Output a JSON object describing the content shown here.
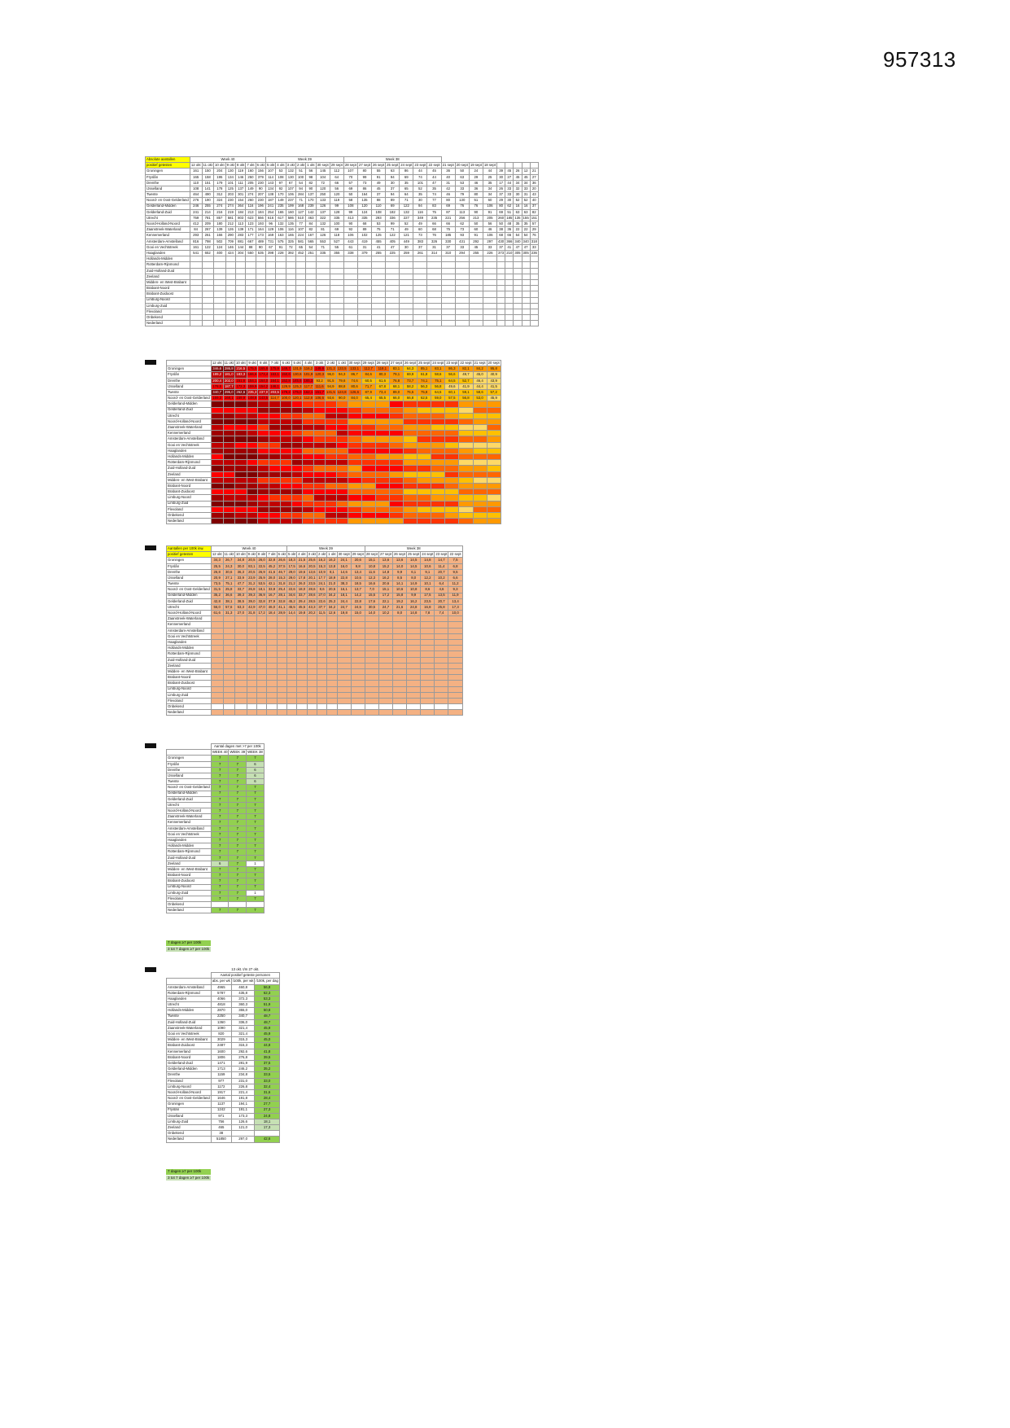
{
  "document_id": "957313",
  "colors": {
    "yellow_header": "#ffff00",
    "green": "#92d050",
    "light_green": "#c6e0b4",
    "salmon": "#f4b183",
    "heat_dark": "#7f0000",
    "heat_red": "#ff0000",
    "heat_orange": "#ff9900",
    "heat_yellow": "#ffd966"
  },
  "regions": [
    "Groningen",
    "Fryslân",
    "Drenthe",
    "IJsselland",
    "Twente",
    "Noord- en Oost-Gelderland",
    "Gelderland-Midden",
    "Gelderland-Zuid",
    "Utrecht",
    "Noord-Holland-Noord",
    "Zaanstreek-Waterland",
    "Kennemerland",
    "Amsterdam-Amstelland",
    "Gooi en Vechtstreek",
    "Haaglanden",
    "Hollands-Midden",
    "Rotterdam-Rijnmond",
    "Zuid-Holland-Zuid",
    "Zeeland",
    "Midden- en West-Brabant",
    "Brabant-Noord",
    "Brabant-Zuidoost",
    "Limburg-Noord",
    "Limburg-Zuid",
    "Flevoland",
    "Onbekend",
    "Nederland"
  ],
  "dates": [
    "12 okt",
    "11 okt",
    "10 okt",
    "9 okt",
    "8 okt",
    "7 okt",
    "6 okt",
    "5 okt",
    "4 okt",
    "3 okt",
    "2 okt",
    "1 okt",
    "30 sept",
    "29 sept",
    "28 sept",
    "27 sept"
  ],
  "extra_dates": [
    "26 sept",
    "25 sept",
    "24 sept",
    "23 sept",
    "22 sept",
    "21 sept",
    "20 sept",
    "19 sept",
    "18 sept"
  ],
  "weeks": {
    "w40": "Week 40",
    "w39": "Week 39",
    "w38": "Week 38"
  },
  "table1": {
    "title": "Absolute aantallen",
    "subtitle": "positief getesten",
    "corner": "# inwoners",
    "rows": [
      [
        "161",
        "150",
        "204",
        "130",
        "119",
        "160",
        "156",
        "107",
        "53",
        "132",
        "51",
        "56",
        "145",
        "112",
        "107",
        "80",
        "55",
        "63",
        "86",
        "44",
        "45",
        "36",
        "50",
        "24",
        "44",
        "39",
        "45",
        "26",
        "12",
        "21"
      ],
      [
        "165",
        "158",
        "195",
        "134",
        "146",
        "250",
        "379",
        "114",
        "108",
        "130",
        "100",
        "98",
        "104",
        "64",
        "70",
        "99",
        "91",
        "94",
        "69",
        "74",
        "44",
        "40",
        "63",
        "29",
        "25",
        "30",
        "27",
        "45",
        "45",
        "27"
      ],
      [
        "110",
        "151",
        "179",
        "101",
        "111",
        "205",
        "230",
        "143",
        "97",
        "67",
        "54",
        "82",
        "72",
        "66",
        "57",
        "73",
        "49",
        "30",
        "35",
        "101",
        "47",
        "31",
        "53",
        "46",
        "35",
        "17",
        "44",
        "34",
        "34",
        "36"
      ],
      [
        "108",
        "141",
        "178",
        "125",
        "137",
        "149",
        "90",
        "134",
        "92",
        "107",
        "94",
        "90",
        "120",
        "56",
        "69",
        "86",
        "45",
        "37",
        "65",
        "52",
        "35",
        "42",
        "33",
        "36",
        "34",
        "26",
        "33",
        "32",
        "33",
        "20"
      ],
      [
        "464",
        "490",
        "312",
        "203",
        "301",
        "274",
        "207",
        "138",
        "170",
        "106",
        "284",
        "137",
        "250",
        "120",
        "50",
        "164",
        "37",
        "94",
        "64",
        "35",
        "74",
        "46",
        "79",
        "80",
        "34",
        "37",
        "33",
        "30",
        "31",
        "43"
      ],
      [
        "276",
        "190",
        "324",
        "230",
        "154",
        "260",
        "230",
        "187",
        "149",
        "237",
        "71",
        "170",
        "133",
        "119",
        "58",
        "135",
        "88",
        "89",
        "71",
        "30",
        "77",
        "80",
        "130",
        "51",
        "60",
        "29",
        "30",
        "52",
        "52",
        "40"
      ],
      [
        "246",
        "255",
        "274",
        "274",
        "364",
        "116",
        "196",
        "241",
        "235",
        "199",
        "168",
        "239",
        "126",
        "99",
        "108",
        "120",
        "110",
        "69",
        "122",
        "94",
        "83",
        "69",
        "76",
        "76",
        "106",
        "80",
        "62",
        "16",
        "16",
        "37"
      ],
      [
        "241",
        "214",
        "216",
        "219",
        "184",
        "213",
        "184",
        "254",
        "165",
        "160",
        "127",
        "142",
        "137",
        "128",
        "99",
        "124",
        "108",
        "182",
        "132",
        "116",
        "75",
        "87",
        "113",
        "90",
        "91",
        "69",
        "51",
        "63",
        "63",
        "82"
      ],
      [
        "759",
        "781",
        "857",
        "581",
        "803",
        "623",
        "556",
        "616",
        "617",
        "586",
        "510",
        "463",
        "322",
        "335",
        "413",
        "335",
        "293",
        "336",
        "227",
        "349",
        "235",
        "221",
        "256",
        "213",
        "205",
        "260",
        "185",
        "135",
        "155",
        "151"
      ],
      [
        "412",
        "209",
        "180",
        "212",
        "113",
        "123",
        "193",
        "96",
        "132",
        "135",
        "77",
        "84",
        "132",
        "100",
        "90",
        "68",
        "53",
        "99",
        "52",
        "49",
        "66",
        "66",
        "62",
        "50",
        "56",
        "50",
        "48",
        "35",
        "35",
        "57"
      ],
      [
        "84",
        "267",
        "139",
        "126",
        "139",
        "171",
        "164",
        "129",
        "106",
        "116",
        "107",
        "82",
        "81",
        "69",
        "92",
        "89",
        "75",
        "71",
        "49",
        "60",
        "68",
        "75",
        "73",
        "60",
        "46",
        "38",
        "36",
        "22",
        "22",
        "29"
      ],
      [
        "293",
        "261",
        "166",
        "290",
        "283",
        "177",
        "173",
        "169",
        "163",
        "165",
        "224",
        "167",
        "126",
        "118",
        "106",
        "102",
        "125",
        "122",
        "121",
        "73",
        "76",
        "185",
        "93",
        "91",
        "106",
        "68",
        "66",
        "54",
        "54",
        "76"
      ],
      [
        "816",
        "798",
        "502",
        "709",
        "881",
        "667",
        "489",
        "731",
        "575",
        "325",
        "581",
        "565",
        "553",
        "527",
        "443",
        "419",
        "455",
        "405",
        "449",
        "383",
        "326",
        "330",
        "431",
        "292",
        "297",
        "430",
        "366",
        "340",
        "340",
        "318"
      ],
      [
        "161",
        "122",
        "124",
        "146",
        "144",
        "88",
        "90",
        "67",
        "91",
        "72",
        "65",
        "54",
        "71",
        "55",
        "61",
        "31",
        "41",
        "47",
        "30",
        "37",
        "31",
        "37",
        "33",
        "45",
        "33",
        "37",
        "41",
        "47",
        "47",
        "33"
      ],
      [
        "541",
        "652",
        "400",
        "424",
        "304",
        "550",
        "535",
        "398",
        "228",
        "392",
        "452",
        "251",
        "335",
        "355",
        "338",
        "379",
        "255",
        "225",
        "259",
        "261",
        "314",
        "310",
        "294",
        "255",
        "226",
        "373",
        "210",
        "305",
        "305",
        "236"
      ]
    ]
  },
  "table2": {
    "header": "",
    "rows": [
      [
        "346,6",
        "286,8",
        "216,5",
        "175,5",
        "165,8",
        "175,9",
        "149,7",
        "131,9",
        "116,2",
        "149,8",
        "131,2",
        "133,5",
        "133,1",
        "112,7",
        "118,1",
        "83,1",
        "64,3",
        "85,1",
        "83,1",
        "86,3",
        "82,1",
        "84,2",
        "95,8"
      ],
      [
        "189,2",
        "181,0",
        "183,3",
        "166,6",
        "173,4",
        "163,1",
        "150,6",
        "130,6",
        "101,9",
        "120,3",
        "96,0",
        "94,3",
        "86,7",
        "84,6",
        "80,3",
        "79,1",
        "69,9",
        "61,8",
        "58,6",
        "56,6",
        "49,7",
        "45,0",
        "40,9"
      ],
      [
        "200,4",
        "202,0",
        "151,6",
        "154,1",
        "164,0",
        "164,1",
        "152,8",
        "145,6",
        "165,3",
        "93,2",
        "91,5",
        "79,6",
        "74,6",
        "60,5",
        "61,6",
        "76,8",
        "73,7",
        "74,1",
        "75,1",
        "64,5",
        "52,7",
        "46,4",
        "43,9"
      ],
      [
        "178,5",
        "187,7",
        "172,3",
        "159,9",
        "154,2",
        "146,1",
        "129,9",
        "125,3",
        "117,7",
        "111,6",
        "94,9",
        "88,8",
        "80,6",
        "71,7",
        "67,8",
        "68,1",
        "58,2",
        "56,3",
        "56,8",
        "49,6",
        "41,9",
        "44,4",
        "41,5"
      ],
      [
        "340,7",
        "295,0",
        "262,6",
        "235,3",
        "237,0",
        "203,5",
        "179,2",
        "175,0",
        "162,1",
        "151,7",
        "131,5",
        "124,8",
        "126,6",
        "87,9",
        "73,4",
        "89,0",
        "76,5",
        "75,8",
        "64,5",
        "60,1",
        "59,1",
        "58,6",
        "57,2"
      ],
      [
        "169,3",
        "168,1",
        "159,9",
        "148,8",
        "143,5",
        "114,7",
        "100,0",
        "120,1",
        "112,8",
        "106,6",
        "93,6",
        "90,0",
        "84,0",
        "65,4",
        "65,5",
        "66,0",
        "66,8",
        "62,5",
        "59,0",
        "57,5",
        "56,8",
        "53,0",
        "45,9"
      ]
    ]
  },
  "table3": {
    "title": "Aantallen per 100k inw.",
    "subtitle": "positief getesten",
    "rows": [
      [
        "34,3",
        "26,7",
        "34,8",
        "20,5",
        "26,0",
        "32,8",
        "26,6",
        "18,3",
        "21,5",
        "25,6",
        "16,2",
        "16,2",
        "24,1",
        "20,6",
        "15,1",
        "13,6",
        "13,6",
        "14,5",
        "14,8",
        "14,7",
        "7,5"
      ],
      [
        "25,5",
        "24,3",
        "30,0",
        "83,1",
        "22,5",
        "45,2",
        "37,5",
        "17,5",
        "16,6",
        "20,5",
        "15,3",
        "13,8",
        "16,0",
        "9,8",
        "10,8",
        "15,2",
        "14,0",
        "14,5",
        "10,6",
        "11,4",
        "6,8"
      ],
      [
        "26,8",
        "30,6",
        "36,3",
        "20,5",
        "26,9",
        "41,6",
        "46,7",
        "29,0",
        "19,6",
        "13,6",
        "10,9",
        "8,1",
        "14,6",
        "13,4",
        "11,6",
        "14,8",
        "9,9",
        "6,1",
        "9,1",
        "20,7",
        "9,5"
      ],
      [
        "20,9",
        "27,1",
        "33,9",
        "23,9",
        "25,9",
        "28,0",
        "15,3",
        "29,0",
        "17,8",
        "20,1",
        "17,7",
        "18,9",
        "22,8",
        "10,5",
        "12,3",
        "16,2",
        "8,5",
        "8,0",
        "12,2",
        "10,2",
        "6,6"
      ],
      [
        "73,5",
        "75,1",
        "47,7",
        "31,2",
        "53,5",
        "42,1",
        "31,8",
        "21,2",
        "26,0",
        "23,5",
        "24,1",
        "21,0",
        "38,3",
        "18,5",
        "16,6",
        "20,6",
        "14,1",
        "14,9",
        "10,1",
        "6,4",
        "11,2"
      ],
      [
        "31,5",
        "25,8",
        "33,7",
        "26,8",
        "18,1",
        "33,8",
        "25,4",
        "22,6",
        "18,0",
        "28,6",
        "8,6",
        "20,5",
        "16,1",
        "13,7",
        "7,0",
        "15,1",
        "10,6",
        "10,8",
        "8,6",
        "4,6",
        "9,3"
      ],
      [
        "35,2",
        "36,6",
        "39,3",
        "39,3",
        "36,9",
        "16,7",
        "28,1",
        "34,6",
        "33,7",
        "28,6",
        "27,0",
        "34,2",
        "18,1",
        "14,2",
        "15,5",
        "17,2",
        "15,8",
        "9,9",
        "17,5",
        "13,5",
        "11,9"
      ],
      [
        "42,8",
        "38,1",
        "38,5",
        "39,0",
        "32,8",
        "37,9",
        "32,8",
        "45,2",
        "29,4",
        "28,5",
        "22,6",
        "25,3",
        "24,4",
        "22,8",
        "17,6",
        "22,1",
        "19,2",
        "16,2",
        "23,5",
        "20,7",
        "13,4"
      ],
      [
        "56,0",
        "57,6",
        "63,3",
        "42,9",
        "47,0",
        "46,0",
        "41,1",
        "45,5",
        "45,5",
        "43,3",
        "37,7",
        "34,2",
        "24,7",
        "24,5",
        "30,5",
        "24,7",
        "21,6",
        "24,8",
        "16,8",
        "25,8",
        "17,3"
      ],
      [
        "61,6",
        "31,3",
        "27,0",
        "31,8",
        "17,2",
        "18,4",
        "28,9",
        "14,4",
        "19,8",
        "20,2",
        "11,5",
        "12,6",
        "19,8",
        "15,0",
        "14,0",
        "10,2",
        "8,0",
        "14,8",
        "7,8",
        "7,4",
        "10,0"
      ]
    ]
  },
  "table4": {
    "title": "Aantal dagen met >7 per 100k",
    "columns": [
      "WEEK 40",
      "WEEK 39",
      "WEEK 38"
    ],
    "rows": [
      [
        "7",
        "7",
        "7"
      ],
      [
        "7",
        "7",
        "6"
      ],
      [
        "7",
        "7",
        "6"
      ],
      [
        "7",
        "7",
        "6"
      ],
      [
        "7",
        "7",
        "6"
      ],
      [
        "7",
        "7",
        "7"
      ],
      [
        "7",
        "7",
        "7"
      ],
      [
        "7",
        "7",
        "7"
      ],
      [
        "7",
        "7",
        "7"
      ],
      [
        "7",
        "7",
        "7"
      ],
      [
        "7",
        "7",
        "7"
      ],
      [
        "7",
        "7",
        "7"
      ],
      [
        "7",
        "7",
        "7"
      ],
      [
        "7",
        "7",
        "7"
      ],
      [
        "7",
        "7",
        "7"
      ],
      [
        "7",
        "7",
        "7"
      ],
      [
        "7",
        "7",
        "7"
      ],
      [
        "7",
        "7",
        "7"
      ],
      [
        "6",
        "7",
        "1"
      ],
      [
        "7",
        "7",
        "7"
      ],
      [
        "7",
        "7",
        "7"
      ],
      [
        "7",
        "7",
        "7"
      ],
      [
        "7",
        "7",
        "7"
      ],
      [
        "7",
        "7",
        "1"
      ],
      [
        "7",
        "7",
        "7"
      ],
      [
        "",
        "",
        " "
      ],
      [
        "7",
        "7",
        "7"
      ]
    ],
    "legend": [
      "7 dagen ≥7 per 100k",
      "3 tot 7 dagen ≥7 per 100k"
    ]
  },
  "table5": {
    "title": "13 okt. t/m 27 okt.",
    "subtitle": "Aantal positief geteste personen",
    "columns": [
      "abs. per wk",
      "/100k, per wk",
      "/100k, per dag"
    ],
    "rows": [
      [
        "Amsterdam-Amstelland",
        "4965",
        "460,8",
        "56,8"
      ],
      [
        "Rotterdam-Rijnmond",
        "5787",
        "435,8",
        "62,3"
      ],
      [
        "Haaglanden",
        "4066",
        "372,3",
        "53,3"
      ],
      [
        "Utrecht",
        "4818",
        "360,3",
        "51,9"
      ],
      [
        "Hollands-Midden",
        "2870",
        "355,0",
        "50,8"
      ],
      [
        "Twente",
        "2250",
        "340,7",
        "48,7"
      ],
      [
        "Zuid-Holland-Zuid",
        "1360",
        "336,0",
        "48,7"
      ],
      [
        "Zaanstreek-Waterland",
        "1090",
        "321,4",
        "45,9"
      ],
      [
        "Gooi en Vechtstreek",
        "820",
        "321,4",
        "45,9"
      ],
      [
        "Midden- en West-Brabant",
        "3029",
        "315,3",
        "45,0"
      ],
      [
        "Brabant-Zuidoost",
        "2487",
        "315,3",
        "44,8"
      ],
      [
        "Kennemerland",
        "1600",
        "292,6",
        "41,8"
      ],
      [
        "Brabant-Noord",
        "1806",
        "276,8",
        "39,5"
      ],
      [
        "Gelderland-Zuid",
        "1471",
        "281,9",
        "37,5"
      ],
      [
        "Gelderland-Midden",
        "1713",
        "246,2",
        "35,2"
      ],
      [
        "Drenthe",
        "1159",
        "234,8",
        "33,5"
      ],
      [
        "Flevoland",
        "977",
        "231,0",
        "33,0"
      ],
      [
        "Limburg-Noord",
        "1172",
        "226,8",
        "32,4"
      ],
      [
        "Noord-Holland-Noord",
        "1917",
        "221,4",
        "31,6"
      ],
      [
        "Noord- en Oost-Gelderland",
        "1646",
        "191,8",
        "28,4"
      ],
      [
        "Groningen",
        "1137",
        "194,1",
        "27,7"
      ],
      [
        "Fryslân",
        "1242",
        "191,1",
        "27,3"
      ],
      [
        "IJsselland",
        "971",
        "173,3",
        "24,8"
      ],
      [
        "Limburg-Zuid",
        "756",
        "126,6",
        "18,1"
      ],
      [
        "Zeeland",
        "465",
        "121,0",
        "17,3"
      ],
      [
        "Onbekend",
        "38",
        "",
        ""
      ],
      [
        "Nederland",
        "51850",
        "297,0",
        "42,6"
      ]
    ],
    "legend": [
      "7 dagen ≥7 per 100k",
      "3 tot 7 dagen ≥7 per 100k"
    ]
  }
}
